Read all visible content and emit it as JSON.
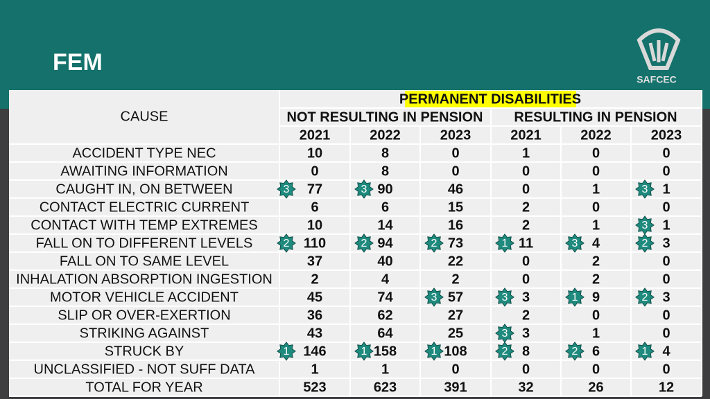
{
  "header": {
    "title": "FEM",
    "logo_text": "SAFCEC"
  },
  "table": {
    "group_title": "PERMANENT DISABILITIES",
    "cause_header": "CAUSE",
    "subgroups": [
      "NOT RESULTING IN PENSION",
      "RESULTING IN PENSION"
    ],
    "years": [
      "2021",
      "2022",
      "2023",
      "2021",
      "2022",
      "2023"
    ],
    "rows": [
      {
        "cause": "ACCIDENT TYPE NEC",
        "cells": [
          {
            "value": 10
          },
          {
            "value": 8
          },
          {
            "value": 0
          },
          {
            "value": 1
          },
          {
            "value": 0
          },
          {
            "value": 0
          }
        ]
      },
      {
        "cause": "AWAITING INFORMATION",
        "cells": [
          {
            "value": 0
          },
          {
            "value": 8
          },
          {
            "value": 0
          },
          {
            "value": 0
          },
          {
            "value": 0
          },
          {
            "value": 0
          }
        ]
      },
      {
        "cause": "CAUGHT IN, ON BETWEEN",
        "cells": [
          {
            "value": 77,
            "badge": 3
          },
          {
            "value": 90,
            "badge": 3
          },
          {
            "value": 46
          },
          {
            "value": 0
          },
          {
            "value": 1
          },
          {
            "value": 1,
            "badge": 3
          }
        ]
      },
      {
        "cause": "CONTACT ELECTRIC CURRENT",
        "cells": [
          {
            "value": 6
          },
          {
            "value": 6
          },
          {
            "value": 15
          },
          {
            "value": 2
          },
          {
            "value": 0
          },
          {
            "value": 0
          }
        ]
      },
      {
        "cause": "CONTACT WITH TEMP EXTREMES",
        "cells": [
          {
            "value": 10
          },
          {
            "value": 14
          },
          {
            "value": 16
          },
          {
            "value": 2
          },
          {
            "value": 1
          },
          {
            "value": 1,
            "badge": 3
          }
        ]
      },
      {
        "cause": "FALL ON TO DIFFERENT LEVELS",
        "cells": [
          {
            "value": 110,
            "badge": 2
          },
          {
            "value": 94,
            "badge": 2
          },
          {
            "value": 73,
            "badge": 2
          },
          {
            "value": 11,
            "badge": 1
          },
          {
            "value": 4,
            "badge": 3
          },
          {
            "value": 3,
            "badge": 2
          }
        ]
      },
      {
        "cause": "FALL ON TO SAME LEVEL",
        "cells": [
          {
            "value": 37
          },
          {
            "value": 40
          },
          {
            "value": 22
          },
          {
            "value": 0
          },
          {
            "value": 2
          },
          {
            "value": 0
          }
        ]
      },
      {
        "cause": "INHALATION ABSORPTION INGESTION",
        "cells": [
          {
            "value": 2
          },
          {
            "value": 4
          },
          {
            "value": 2
          },
          {
            "value": 0
          },
          {
            "value": 2
          },
          {
            "value": 0
          }
        ]
      },
      {
        "cause": "MOTOR VEHICLE ACCIDENT",
        "cells": [
          {
            "value": 45
          },
          {
            "value": 74
          },
          {
            "value": 57,
            "badge": 3
          },
          {
            "value": 3,
            "badge": 3
          },
          {
            "value": 9,
            "badge": 1
          },
          {
            "value": 3,
            "badge": 2
          }
        ]
      },
      {
        "cause": "SLIP OR OVER-EXERTION",
        "cells": [
          {
            "value": 36
          },
          {
            "value": 62
          },
          {
            "value": 27
          },
          {
            "value": 2
          },
          {
            "value": 0
          },
          {
            "value": 0
          }
        ]
      },
      {
        "cause": "STRIKING AGAINST",
        "cells": [
          {
            "value": 43
          },
          {
            "value": 64
          },
          {
            "value": 25
          },
          {
            "value": 3,
            "badge": 3
          },
          {
            "value": 1
          },
          {
            "value": 0
          }
        ]
      },
      {
        "cause": "STRUCK BY",
        "cells": [
          {
            "value": 146,
            "badge": 1
          },
          {
            "value": 158,
            "badge": 1
          },
          {
            "value": 108,
            "badge": 1
          },
          {
            "value": 8,
            "badge": 2
          },
          {
            "value": 6,
            "badge": 2
          },
          {
            "value": 4,
            "badge": 1
          }
        ]
      },
      {
        "cause": "UNCLASSIFIED - NOT SUFF DATA",
        "cells": [
          {
            "value": 1
          },
          {
            "value": 1
          },
          {
            "value": 0
          },
          {
            "value": 0
          },
          {
            "value": 0
          },
          {
            "value": 0
          }
        ]
      },
      {
        "cause": "TOTAL FOR YEAR",
        "cells": [
          {
            "value": 523
          },
          {
            "value": 623
          },
          {
            "value": 391
          },
          {
            "value": 32
          },
          {
            "value": 26
          },
          {
            "value": 12
          }
        ]
      }
    ]
  }
}
